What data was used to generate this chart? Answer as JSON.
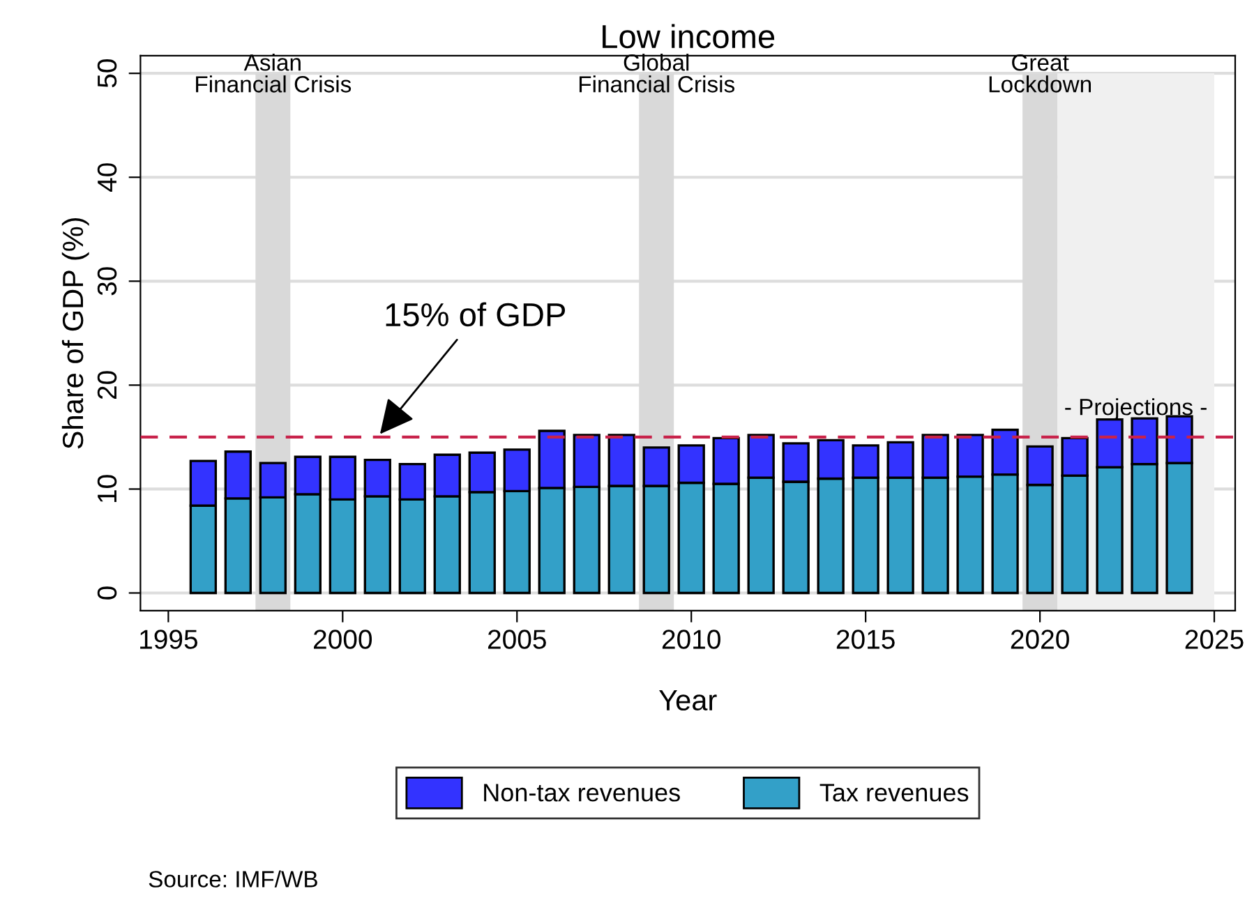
{
  "chart_data": {
    "type": "bar",
    "title": "Low income",
    "xlabel": "Year",
    "ylabel": "Share of GDP (%)",
    "x": [
      1996,
      1997,
      1998,
      1999,
      2000,
      2001,
      2002,
      2003,
      2004,
      2005,
      2006,
      2007,
      2008,
      2009,
      2010,
      2011,
      2012,
      2013,
      2014,
      2015,
      2016,
      2017,
      2018,
      2019,
      2020,
      2021,
      2022,
      2023,
      2024
    ],
    "stacked": true,
    "series": [
      {
        "name": "Tax revenues",
        "color": "#33a0c8",
        "values": [
          8.4,
          9.1,
          9.2,
          9.5,
          9.0,
          9.3,
          9.0,
          9.3,
          9.7,
          9.8,
          10.1,
          10.2,
          10.3,
          10.3,
          10.6,
          10.5,
          11.1,
          10.7,
          11.0,
          11.1,
          11.1,
          11.1,
          11.2,
          11.4,
          10.4,
          11.3,
          12.1,
          12.4,
          12.5
        ]
      },
      {
        "name": "Non-tax revenues",
        "color": "#3333ff",
        "values": [
          4.3,
          4.5,
          3.3,
          3.6,
          4.1,
          3.5,
          3.4,
          4.0,
          3.8,
          4.0,
          5.5,
          5.0,
          4.9,
          3.7,
          3.6,
          4.4,
          4.1,
          3.7,
          3.7,
          3.1,
          3.4,
          4.1,
          4.0,
          4.3,
          3.7,
          3.6,
          4.6,
          4.4,
          4.5
        ]
      }
    ],
    "xlim": [
      1994.2,
      2025.6
    ],
    "xticks": [
      1995,
      2000,
      2005,
      2010,
      2015,
      2020,
      2025
    ],
    "ylim": [
      -1.7,
      51.7
    ],
    "yticks": [
      0,
      10,
      20,
      30,
      40,
      50
    ],
    "grid": "y",
    "legend": "bottom",
    "ref_lines": [
      {
        "axis": "y",
        "value": 15,
        "color": "#c8234b",
        "line_style": "dashed"
      }
    ],
    "bands": [
      {
        "axis": "x",
        "from": 1997.5,
        "to": 1998.5,
        "label": "Asian\nFinancial Crisis",
        "color": "#d9d9d9"
      },
      {
        "axis": "x",
        "from": 2008.5,
        "to": 2009.5,
        "label": "Global\nFinancial Crisis",
        "color": "#d9d9d9"
      },
      {
        "axis": "x",
        "from": 2019.5,
        "to": 2020.5,
        "label": "Great\nLockdown",
        "color": "#d9d9d9"
      },
      {
        "axis": "x",
        "from": 2020.5,
        "to": 2025,
        "label": "- Projections -",
        "color": "#f0f0f0"
      }
    ],
    "annotations": [
      {
        "text": "15% of GDP",
        "x": 2001,
        "y": 15
      },
      "Source: IMF/WB"
    ]
  }
}
